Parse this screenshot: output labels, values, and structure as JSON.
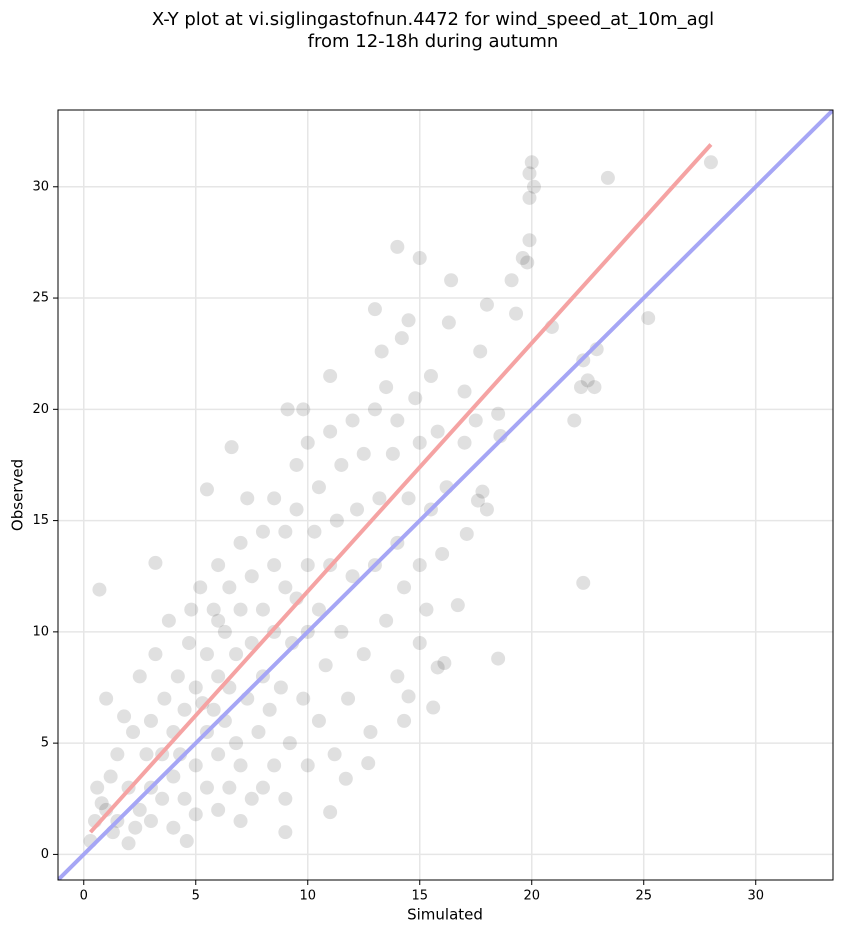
{
  "chart_data": {
    "type": "scatter",
    "title": "X-Y plot at vi.siglingastofnun.4472 for wind_speed_at_10m_agl",
    "subtitle": "from 12-18h during autumn",
    "x_label": "Simulated",
    "y_label": "Observed",
    "xlim": [
      -1.15,
      33.45
    ],
    "ylim": [
      -1.15,
      33.45
    ],
    "xticks": [
      0,
      5,
      10,
      15,
      20,
      25,
      30
    ],
    "yticks": [
      0,
      5,
      10,
      15,
      20,
      25,
      30
    ],
    "grid": true,
    "points": {
      "color": "#000000",
      "alpha": 0.12,
      "x": [
        0.7,
        22.3,
        18.5,
        20,
        28,
        23.4,
        25.2,
        14,
        15,
        6.6,
        5.5,
        3.2,
        16.7,
        15.6,
        19.9,
        20.1,
        19.9,
        19.9,
        19.6,
        19.8,
        19.1,
        18,
        19.3,
        20.9,
        22.3,
        22.9,
        22.5,
        22.2,
        22.8,
        21.9,
        16.4,
        13,
        14.5,
        16.3,
        17.7,
        13.3,
        14.2,
        11,
        9.1,
        17,
        18.5,
        18.6,
        17.8,
        17.6,
        17.1,
        16.1,
        15.8,
        15,
        14.3,
        14.5,
        12.7,
        11.7,
        11,
        9,
        0.3,
        2,
        4.6,
        1,
        1.2,
        1.5,
        1.5,
        1.8,
        1,
        2,
        2.2,
        2.5,
        2.5,
        2.8,
        3,
        3,
        3,
        3.2,
        3.5,
        3.5,
        3.6,
        3.8,
        4,
        4,
        4,
        4.2,
        4.5,
        4.5,
        4.7,
        4.8,
        5,
        5,
        5,
        5.2,
        5.5,
        5.5,
        5.5,
        5.8,
        5.8,
        6,
        6,
        6,
        6,
        6.3,
        6.3,
        6.5,
        6.5,
        6.5,
        6.8,
        6.8,
        7,
        7,
        7,
        7,
        7.3,
        7.5,
        7.5,
        7.5,
        7.8,
        8,
        8,
        8,
        8,
        8.3,
        8.5,
        8.5,
        8.5,
        8.5,
        8.8,
        9,
        9,
        9,
        9.2,
        9.3,
        9.5,
        9.5,
        9.5,
        9.8,
        10,
        10,
        10,
        10,
        10.3,
        10.5,
        10.5,
        10.5,
        10.8,
        11,
        11,
        11.2,
        11.3,
        11.5,
        11.5,
        11.8,
        12,
        12,
        12.2,
        12.5,
        12.5,
        12.8,
        13,
        13,
        13.2,
        13.5,
        13.5,
        13.8,
        14,
        14,
        14,
        14.3,
        14.5,
        14.8,
        15,
        15,
        15.3,
        15.5,
        15.5,
        15.8,
        16,
        16.2,
        17,
        17.5,
        18,
        0.5,
        0.6,
        0.8,
        1.3,
        2.3,
        7.3,
        6,
        4.3,
        5.3,
        9.8
      ],
      "y": [
        11.9,
        12.2,
        8.8,
        31.1,
        31.1,
        30.4,
        24.1,
        27.3,
        26.8,
        18.3,
        16.4,
        13.1,
        11.2,
        6.6,
        30.6,
        30,
        29.5,
        27.6,
        26.8,
        26.6,
        25.8,
        24.7,
        24.3,
        23.7,
        22.2,
        22.7,
        21.3,
        21,
        21,
        19.5,
        25.8,
        24.5,
        24,
        23.9,
        22.6,
        22.6,
        23.2,
        21.5,
        20,
        20.8,
        19.8,
        18.8,
        16.3,
        15.9,
        14.4,
        8.6,
        8.4,
        9.5,
        6,
        7.1,
        4.1,
        3.4,
        1.9,
        1,
        0.6,
        0.5,
        0.6,
        2,
        3.5,
        1.5,
        4.5,
        6.2,
        7,
        3,
        5.5,
        2,
        8,
        4.5,
        1.5,
        3,
        6,
        9,
        2.5,
        4.5,
        7,
        10.5,
        1.2,
        3.5,
        5.5,
        8,
        2.5,
        6.5,
        9.5,
        11,
        1.8,
        4,
        7.5,
        12,
        3,
        5.5,
        9,
        6.5,
        11,
        2,
        4.5,
        8,
        13,
        6,
        10,
        3,
        7.5,
        12,
        5,
        9,
        1.5,
        4,
        11,
        14,
        7,
        2.5,
        9.5,
        12.5,
        5.5,
        3,
        8,
        11,
        14.5,
        6.5,
        4,
        10,
        13,
        16,
        7.5,
        2.5,
        12,
        14.5,
        5,
        9.5,
        11.5,
        15.5,
        17.5,
        7,
        4,
        10,
        13,
        18.5,
        14.5,
        6,
        11,
        16.5,
        8.5,
        13,
        19,
        4.5,
        15,
        10,
        17.5,
        7,
        12.5,
        19.5,
        15.5,
        9,
        18,
        5.5,
        13,
        20,
        16,
        10.5,
        21,
        18,
        8,
        14,
        19.5,
        12,
        16,
        20.5,
        13,
        18.5,
        11,
        15.5,
        21.5,
        19,
        13.5,
        16.5,
        18.5,
        19.5,
        15.5,
        1.5,
        3,
        2.3,
        1,
        1.2,
        16,
        10.5,
        4.5,
        6.8,
        20
      ]
    },
    "lines": [
      {
        "color": "#a6a6f5",
        "x": [
          -1.15,
          33.45
        ],
        "y": [
          -1.15,
          33.45
        ]
      },
      {
        "color": "#f5a3a3",
        "x": [
          0.3,
          28
        ],
        "y": [
          1.0,
          31.9
        ]
      }
    ]
  }
}
